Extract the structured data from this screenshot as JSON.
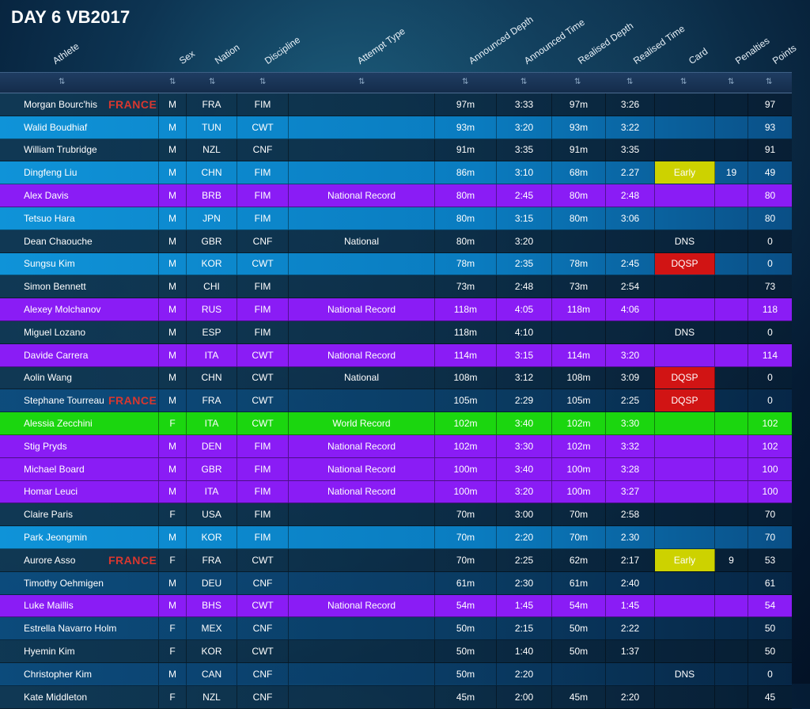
{
  "page": {
    "title": "DAY 6 VB2017"
  },
  "headers": {
    "athlete": "Athlete",
    "sex": "Sex",
    "nation": "Nation",
    "discipline": "Discipline",
    "attempt_type": "Attempt Type",
    "announced_depth": "Announced Depth",
    "announced_time": "Announced Time",
    "realised_depth": "Realised Depth",
    "realised_time": "Realised Time",
    "card": "Card",
    "penalties": "Penalties",
    "points": "Points"
  },
  "sort_icon": "⇅",
  "colors": {
    "row_dark": "#0e2f4a",
    "row_light": "#0f93d8",
    "row_purple": "#8a1cf5",
    "row_green": "#1bd60f",
    "card_early": "#cdd200",
    "card_dqsp": "#d11414",
    "france_label": "#d8372f"
  },
  "rows": [
    {
      "athlete": "Morgan Bourc'his",
      "france": "FRANCE",
      "sex": "M",
      "nation": "FRA",
      "discipline": "FIM",
      "attempt": "",
      "ad": "97m",
      "at": "3:33",
      "rd": "97m",
      "rt": "3:26",
      "card": "",
      "card_type": "",
      "penalties": "",
      "points": "97",
      "style": "dark"
    },
    {
      "athlete": "Walid Boudhiaf",
      "france": "",
      "sex": "M",
      "nation": "TUN",
      "discipline": "CWT",
      "attempt": "",
      "ad": "93m",
      "at": "3:20",
      "rd": "93m",
      "rt": "3:22",
      "card": "",
      "card_type": "",
      "penalties": "",
      "points": "93",
      "style": "light"
    },
    {
      "athlete": "William Trubridge",
      "france": "",
      "sex": "M",
      "nation": "NZL",
      "discipline": "CNF",
      "attempt": "",
      "ad": "91m",
      "at": "3:35",
      "rd": "91m",
      "rt": "3:35",
      "card": "",
      "card_type": "",
      "penalties": "",
      "points": "91",
      "style": "dark"
    },
    {
      "athlete": "Dingfeng Liu",
      "france": "",
      "sex": "M",
      "nation": "CHN",
      "discipline": "FIM",
      "attempt": "",
      "ad": "86m",
      "at": "3:10",
      "rd": "68m",
      "rt": "2.27",
      "card": "Early",
      "card_type": "early",
      "penalties": "19",
      "points": "49",
      "style": "light"
    },
    {
      "athlete": "Alex Davis",
      "france": "",
      "sex": "M",
      "nation": "BRB",
      "discipline": "FIM",
      "attempt": "National Record",
      "ad": "80m",
      "at": "2:45",
      "rd": "80m",
      "rt": "2:48",
      "card": "",
      "card_type": "",
      "penalties": "",
      "points": "80",
      "style": "purple"
    },
    {
      "athlete": "Tetsuo Hara",
      "france": "",
      "sex": "M",
      "nation": "JPN",
      "discipline": "FIM",
      "attempt": "",
      "ad": "80m",
      "at": "3:15",
      "rd": "80m",
      "rt": "3:06",
      "card": "",
      "card_type": "",
      "penalties": "",
      "points": "80",
      "style": "light"
    },
    {
      "athlete": "Dean Chaouche",
      "france": "",
      "sex": "M",
      "nation": "GBR",
      "discipline": "CNF",
      "attempt": "National",
      "ad": "80m",
      "at": "3:20",
      "rd": "",
      "rt": "",
      "card": "DNS",
      "card_type": "dns",
      "penalties": "",
      "points": "0",
      "style": "dark"
    },
    {
      "athlete": "Sungsu Kim",
      "france": "",
      "sex": "M",
      "nation": "KOR",
      "discipline": "CWT",
      "attempt": "",
      "ad": "78m",
      "at": "2:35",
      "rd": "78m",
      "rt": "2:45",
      "card": "DQSP",
      "card_type": "dqsp",
      "penalties": "",
      "points": "0",
      "style": "light"
    },
    {
      "athlete": "Simon Bennett",
      "france": "",
      "sex": "M",
      "nation": "CHI",
      "discipline": "FIM",
      "attempt": "",
      "ad": "73m",
      "at": "2:48",
      "rd": "73m",
      "rt": "2:54",
      "card": "",
      "card_type": "",
      "penalties": "",
      "points": "73",
      "style": "dark"
    },
    {
      "athlete": "Alexey Molchanov",
      "france": "",
      "sex": "M",
      "nation": "RUS",
      "discipline": "FIM",
      "attempt": "National Record",
      "ad": "118m",
      "at": "4:05",
      "rd": "118m",
      "rt": "4:06",
      "card": "",
      "card_type": "",
      "penalties": "",
      "points": "118",
      "style": "purple"
    },
    {
      "athlete": "Miguel Lozano",
      "france": "",
      "sex": "M",
      "nation": "ESP",
      "discipline": "FIM",
      "attempt": "",
      "ad": "118m",
      "at": "4:10",
      "rd": "",
      "rt": "",
      "card": "DNS",
      "card_type": "dns",
      "penalties": "",
      "points": "0",
      "style": "dark"
    },
    {
      "athlete": "Davide Carrera",
      "france": "",
      "sex": "M",
      "nation": "ITA",
      "discipline": "CWT",
      "attempt": "National Record",
      "ad": "114m",
      "at": "3:15",
      "rd": "114m",
      "rt": "3:20",
      "card": "",
      "card_type": "",
      "penalties": "",
      "points": "114",
      "style": "purple"
    },
    {
      "athlete": "Aolin Wang",
      "france": "",
      "sex": "M",
      "nation": "CHN",
      "discipline": "CWT",
      "attempt": "National",
      "ad": "108m",
      "at": "3:12",
      "rd": "108m",
      "rt": "3:09",
      "card": "DQSP",
      "card_type": "dqsp",
      "penalties": "",
      "points": "0",
      "style": "dark"
    },
    {
      "athlete": "Stephane Tourreau",
      "france": "FRANCE",
      "sex": "M",
      "nation": "FRA",
      "discipline": "CWT",
      "attempt": "",
      "ad": "105m",
      "at": "2:29",
      "rd": "105m",
      "rt": "2:25",
      "card": "DQSP",
      "card_type": "dqsp",
      "penalties": "",
      "points": "0",
      "style": "mid"
    },
    {
      "athlete": "Alessia Zecchini",
      "france": "",
      "sex": "F",
      "nation": "ITA",
      "discipline": "CWT",
      "attempt": "World Record",
      "ad": "102m",
      "at": "3:40",
      "rd": "102m",
      "rt": "3:30",
      "card": "",
      "card_type": "",
      "penalties": "",
      "points": "102",
      "style": "green"
    },
    {
      "athlete": "Stig Pryds",
      "france": "",
      "sex": "M",
      "nation": "DEN",
      "discipline": "FIM",
      "attempt": "National Record",
      "ad": "102m",
      "at": "3:30",
      "rd": "102m",
      "rt": "3:32",
      "card": "",
      "card_type": "",
      "penalties": "",
      "points": "102",
      "style": "purple"
    },
    {
      "athlete": "Michael Board",
      "france": "",
      "sex": "M",
      "nation": "GBR",
      "discipline": "FIM",
      "attempt": "National Record",
      "ad": "100m",
      "at": "3:40",
      "rd": "100m",
      "rt": "3:28",
      "card": "",
      "card_type": "",
      "penalties": "",
      "points": "100",
      "style": "purple"
    },
    {
      "athlete": "Homar Leuci",
      "france": "",
      "sex": "M",
      "nation": "ITA",
      "discipline": "FIM",
      "attempt": "National Record",
      "ad": "100m",
      "at": "3:20",
      "rd": "100m",
      "rt": "3:27",
      "card": "",
      "card_type": "",
      "penalties": "",
      "points": "100",
      "style": "purple"
    },
    {
      "athlete": "Claire Paris",
      "france": "",
      "sex": "F",
      "nation": "USA",
      "discipline": "FIM",
      "attempt": "",
      "ad": "70m",
      "at": "3:00",
      "rd": "70m",
      "rt": "2:58",
      "card": "",
      "card_type": "",
      "penalties": "",
      "points": "70",
      "style": "dark"
    },
    {
      "athlete": "Park Jeongmin",
      "france": "",
      "sex": "M",
      "nation": "KOR",
      "discipline": "FIM",
      "attempt": "",
      "ad": "70m",
      "at": "2:20",
      "rd": "70m",
      "rt": "2.30",
      "card": "",
      "card_type": "",
      "penalties": "",
      "points": "70",
      "style": "light"
    },
    {
      "athlete": "Aurore Asso",
      "france": "FRANCE",
      "sex": "F",
      "nation": "FRA",
      "discipline": "CWT",
      "attempt": "",
      "ad": "70m",
      "at": "2:25",
      "rd": "62m",
      "rt": "2:17",
      "card": "Early",
      "card_type": "early",
      "penalties": "9",
      "points": "53",
      "style": "dark"
    },
    {
      "athlete": "Timothy Oehmigen",
      "france": "",
      "sex": "M",
      "nation": "DEU",
      "discipline": "CNF",
      "attempt": "",
      "ad": "61m",
      "at": "2:30",
      "rd": "61m",
      "rt": "2:40",
      "card": "",
      "card_type": "",
      "penalties": "",
      "points": "61",
      "style": "mid"
    },
    {
      "athlete": "Luke Maillis",
      "france": "",
      "sex": "M",
      "nation": "BHS",
      "discipline": "CWT",
      "attempt": "National Record",
      "ad": "54m",
      "at": "1:45",
      "rd": "54m",
      "rt": "1:45",
      "card": "",
      "card_type": "",
      "penalties": "",
      "points": "54",
      "style": "purple"
    },
    {
      "athlete": "Estrella Navarro Holm",
      "france": "",
      "sex": "F",
      "nation": "MEX",
      "discipline": "CNF",
      "attempt": "",
      "ad": "50m",
      "at": "2:15",
      "rd": "50m",
      "rt": "2:22",
      "card": "",
      "card_type": "",
      "penalties": "",
      "points": "50",
      "style": "mid"
    },
    {
      "athlete": "Hyemin Kim",
      "france": "",
      "sex": "F",
      "nation": "KOR",
      "discipline": "CWT",
      "attempt": "",
      "ad": "50m",
      "at": "1:40",
      "rd": "50m",
      "rt": "1:37",
      "card": "",
      "card_type": "",
      "penalties": "",
      "points": "50",
      "style": "dark"
    },
    {
      "athlete": "Christopher Kim",
      "france": "",
      "sex": "M",
      "nation": "CAN",
      "discipline": "CNF",
      "attempt": "",
      "ad": "50m",
      "at": "2:20",
      "rd": "",
      "rt": "",
      "card": "DNS",
      "card_type": "dns",
      "penalties": "",
      "points": "0",
      "style": "mid"
    },
    {
      "athlete": "Kate Middleton",
      "france": "",
      "sex": "F",
      "nation": "NZL",
      "discipline": "CNF",
      "attempt": "",
      "ad": "45m",
      "at": "2:00",
      "rd": "45m",
      "rt": "2:20",
      "card": "",
      "card_type": "",
      "penalties": "",
      "points": "45",
      "style": "dark"
    }
  ]
}
